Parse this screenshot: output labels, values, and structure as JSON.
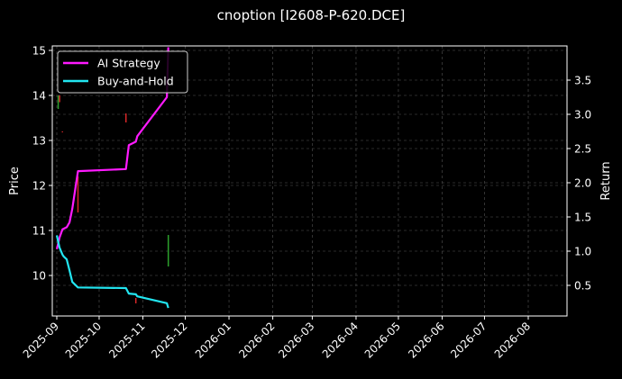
{
  "chart_data": {
    "type": "line",
    "title": "cnoption [I2608-P-620.DCE]",
    "xlabel": "",
    "ylabel": "Price",
    "ylabel_right": "Return",
    "ylim": [
      9.1,
      15.1
    ],
    "ylim_right": [
      0.05,
      3.98
    ],
    "grid": true,
    "legend_position": "upper left",
    "x_ticks": [
      "2025-09",
      "2025-10",
      "2025-11",
      "2025-12",
      "2026-01",
      "2026-02",
      "2026-03",
      "2026-04",
      "2026-05",
      "2026-06",
      "2026-07",
      "2026-08"
    ],
    "y_ticks": [
      10,
      11,
      12,
      13,
      14,
      15
    ],
    "y_ticks_right": [
      0.5,
      1.0,
      1.5,
      2.0,
      2.5,
      3.0,
      3.5
    ],
    "series": [
      {
        "name": "AI Strategy",
        "axis": "right",
        "color": "#ff1aff",
        "x": [
          "2025-09-01",
          "2025-09-03",
          "2025-09-05",
          "2025-09-08",
          "2025-09-10",
          "2025-09-12",
          "2025-09-14",
          "2025-09-16",
          "2025-10-20",
          "2025-10-22",
          "2025-10-27",
          "2025-10-28",
          "2025-11-18",
          "2025-11-19"
        ],
        "values": [
          1.03,
          1.2,
          1.32,
          1.35,
          1.42,
          1.62,
          1.9,
          2.17,
          2.2,
          2.55,
          2.6,
          2.68,
          3.25,
          3.98
        ]
      },
      {
        "name": "Buy-and-Hold",
        "axis": "right",
        "color": "#22e5f0",
        "x": [
          "2025-09-01",
          "2025-09-03",
          "2025-09-05",
          "2025-09-06",
          "2025-09-08",
          "2025-09-10",
          "2025-09-12",
          "2025-09-16",
          "2025-10-20",
          "2025-10-22",
          "2025-10-27",
          "2025-10-28",
          "2025-11-18",
          "2025-11-19"
        ],
        "values": [
          1.23,
          1.05,
          0.95,
          0.92,
          0.88,
          0.72,
          0.55,
          0.47,
          0.46,
          0.38,
          0.37,
          0.34,
          0.24,
          0.17
        ]
      }
    ],
    "candles": [
      {
        "date": "2025-09-02",
        "color": "#2ca02c",
        "high": 14.0,
        "low": 13.7
      },
      {
        "date": "2025-09-03",
        "color": "#d62728",
        "high": 14.0,
        "low": 13.85
      },
      {
        "date": "2025-09-05",
        "color": "#d62728",
        "high": 13.2,
        "low": 13.18
      },
      {
        "date": "2025-09-16",
        "color": "#d62728",
        "high": 12.2,
        "low": 11.4
      },
      {
        "date": "2025-10-20",
        "color": "#d62728",
        "high": 13.6,
        "low": 13.4
      },
      {
        "date": "2025-10-27",
        "color": "#d62728",
        "high": 9.5,
        "low": 9.38
      },
      {
        "date": "2025-11-19",
        "color": "#2ca02c",
        "high": 10.9,
        "low": 10.2
      }
    ]
  },
  "legend": {
    "items": [
      {
        "label": "AI Strategy",
        "color": "#ff1aff"
      },
      {
        "label": "Buy-and-Hold",
        "color": "#22e5f0"
      }
    ]
  }
}
